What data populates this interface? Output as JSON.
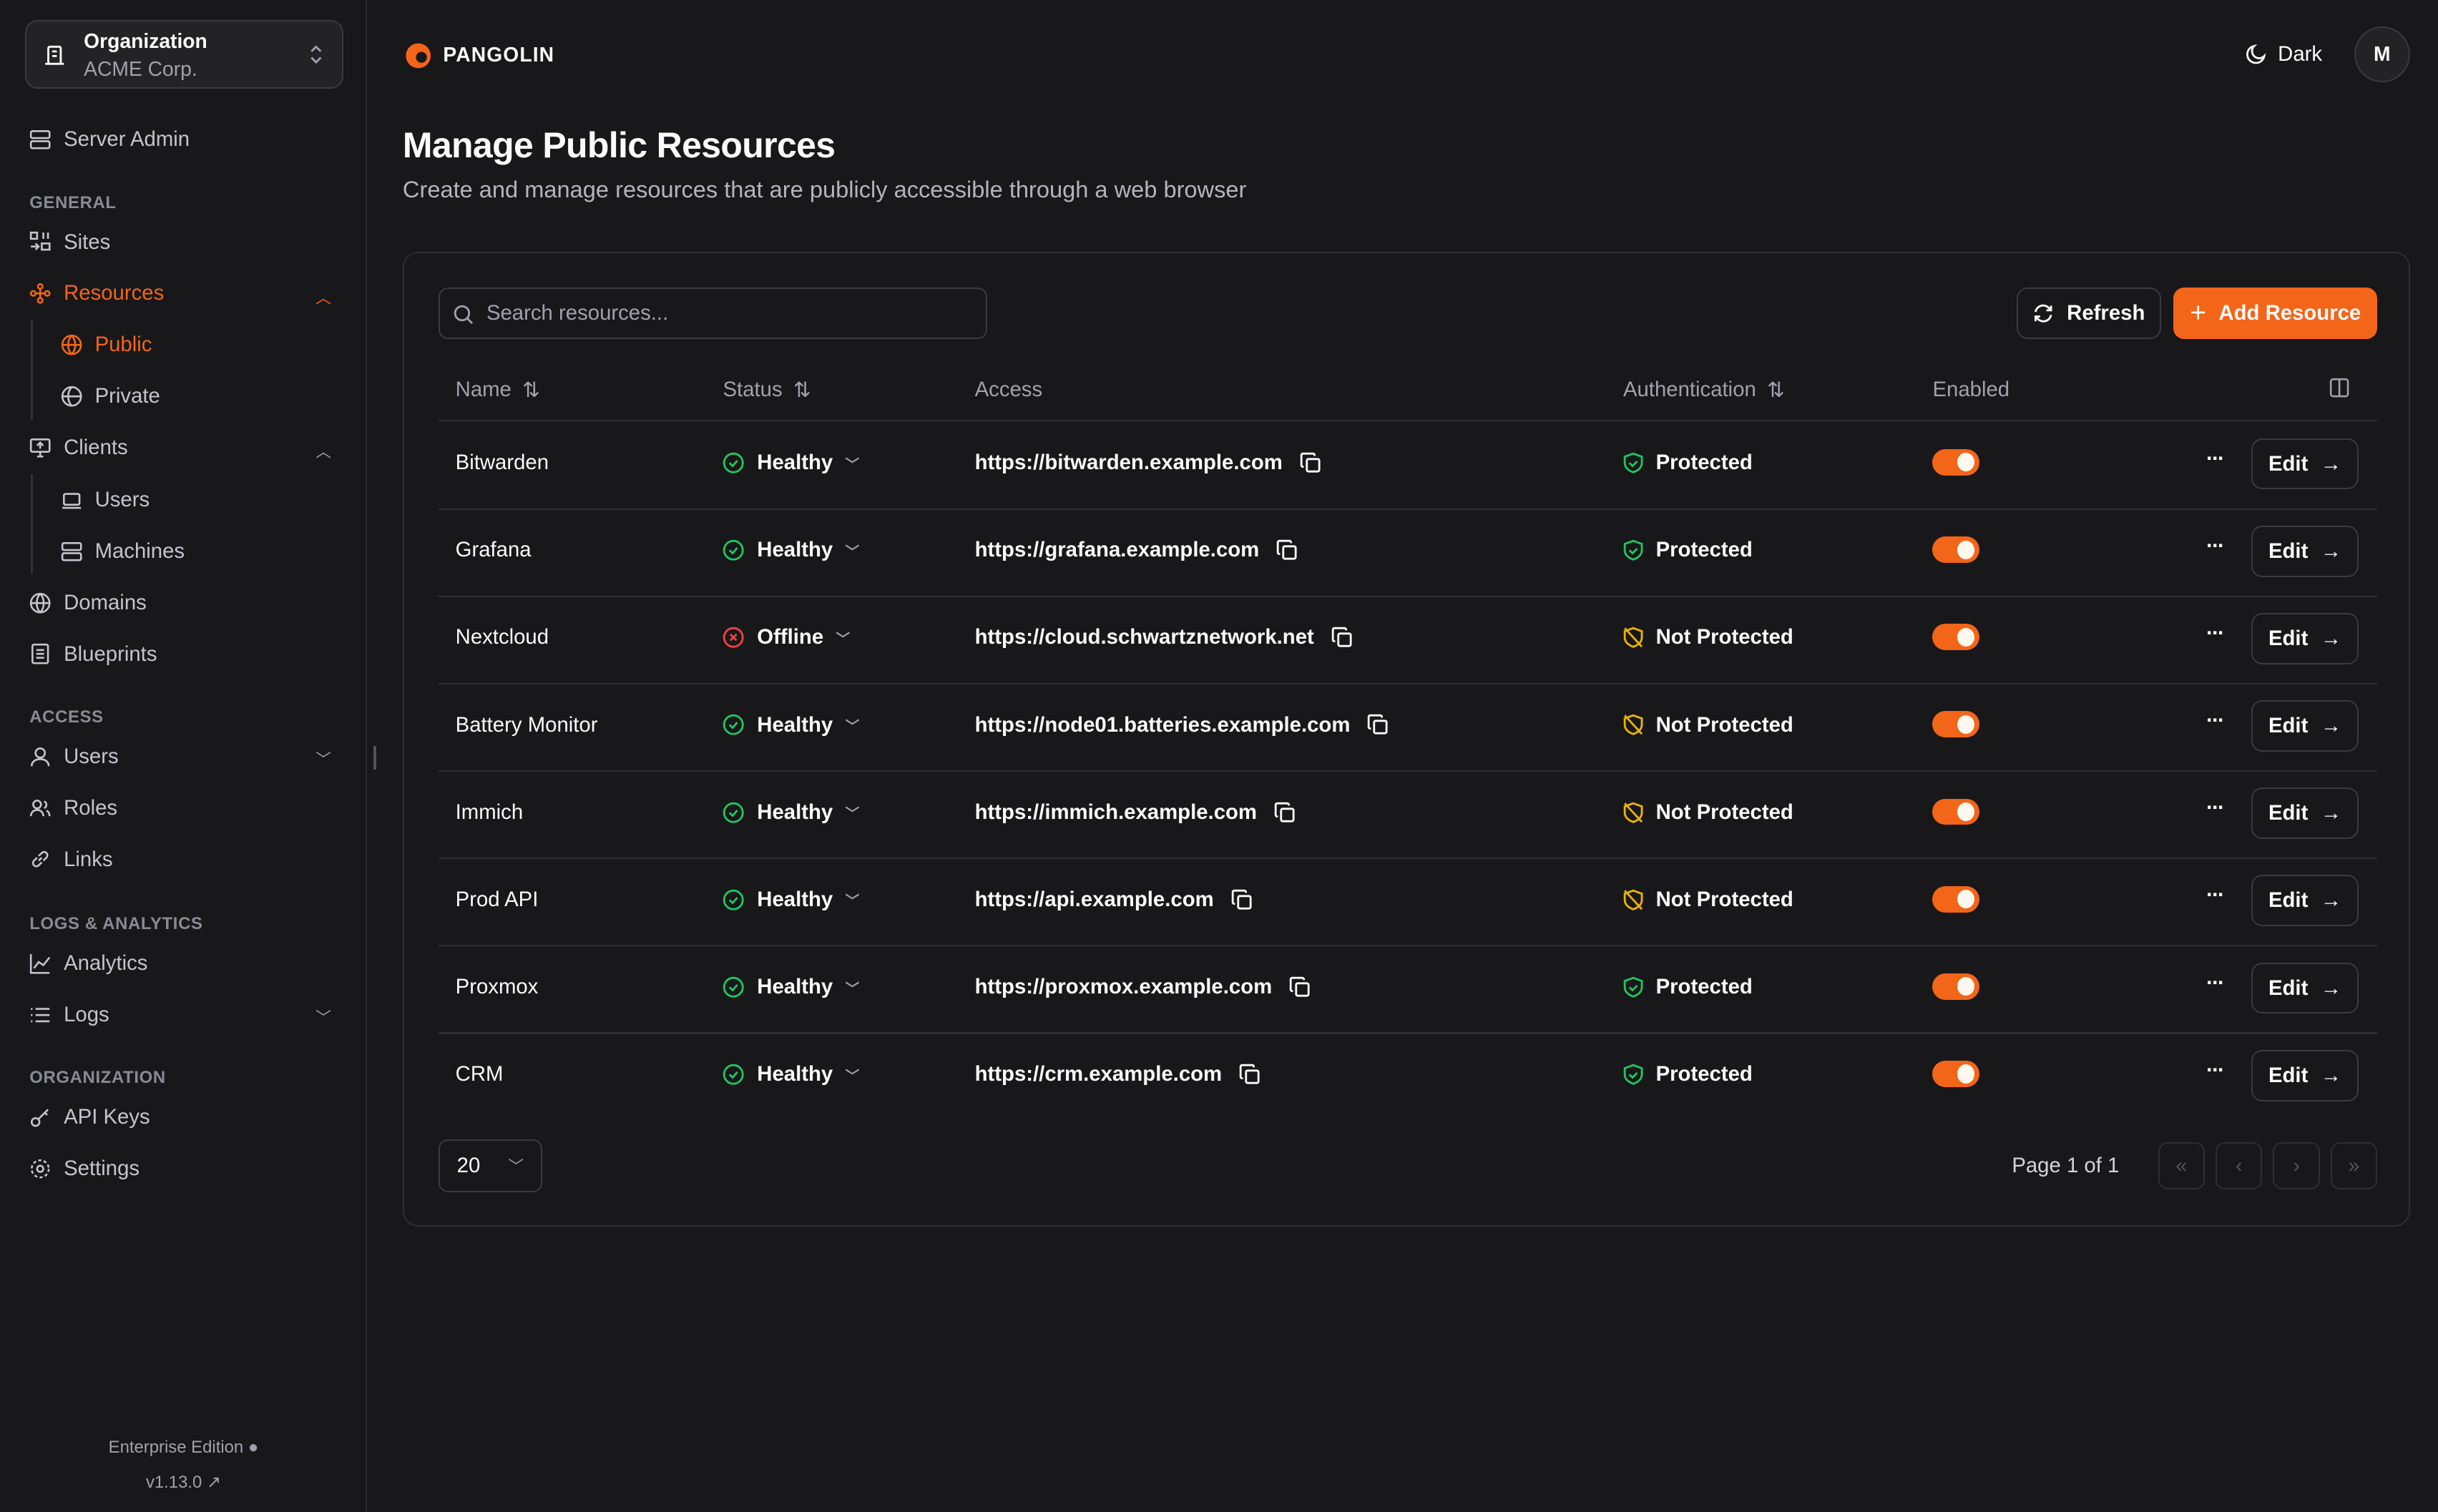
{
  "colors": {
    "accent": "#f36518",
    "healthy": "#22c55e",
    "offline": "#ef4444",
    "warning": "#eab308",
    "background": "#18181b"
  },
  "sidebar": {
    "org_label": "Organization",
    "org_name": "ACME Corp.",
    "server_admin": "Server Admin",
    "sections": {
      "general": "GENERAL",
      "access": "ACCESS",
      "logs": "LOGS & ANALYTICS",
      "organization": "ORGANIZATION"
    },
    "items": {
      "sites": "Sites",
      "resources": "Resources",
      "public": "Public",
      "private": "Private",
      "clients": "Clients",
      "users_client": "Users",
      "machines": "Machines",
      "domains": "Domains",
      "blueprints": "Blueprints",
      "users": "Users",
      "roles": "Roles",
      "links": "Links",
      "analytics": "Analytics",
      "logs": "Logs",
      "api_keys": "API Keys",
      "settings": "Settings"
    },
    "edition": "Enterprise Edition",
    "version": "v1.13.0"
  },
  "header": {
    "brand": "PANGOLIN",
    "theme": "Dark",
    "avatar": "M"
  },
  "page": {
    "title": "Manage Public Resources",
    "subtitle": "Create and manage resources that are publicly accessible through a web browser"
  },
  "toolbar": {
    "search_placeholder": "Search resources...",
    "refresh": "Refresh",
    "add": "Add Resource"
  },
  "table": {
    "columns": {
      "name": "Name",
      "status": "Status",
      "access": "Access",
      "auth": "Authentication",
      "enabled": "Enabled"
    },
    "edit_label": "Edit",
    "rows": [
      {
        "name": "Bitwarden",
        "status": "Healthy",
        "access": "https://bitwarden.example.com",
        "auth": "Protected",
        "enabled": true
      },
      {
        "name": "Grafana",
        "status": "Healthy",
        "access": "https://grafana.example.com",
        "auth": "Protected",
        "enabled": true
      },
      {
        "name": "Nextcloud",
        "status": "Offline",
        "access": "https://cloud.schwartznetwork.net",
        "auth": "Not Protected",
        "enabled": true
      },
      {
        "name": "Battery Monitor",
        "status": "Healthy",
        "access": "https://node01.batteries.example.com",
        "auth": "Not Protected",
        "enabled": true
      },
      {
        "name": "Immich",
        "status": "Healthy",
        "access": "https://immich.example.com",
        "auth": "Not Protected",
        "enabled": true
      },
      {
        "name": "Prod API",
        "status": "Healthy",
        "access": "https://api.example.com",
        "auth": "Not Protected",
        "enabled": true
      },
      {
        "name": "Proxmox",
        "status": "Healthy",
        "access": "https://proxmox.example.com",
        "auth": "Protected",
        "enabled": true
      },
      {
        "name": "CRM",
        "status": "Healthy",
        "access": "https://crm.example.com",
        "auth": "Protected",
        "enabled": true
      }
    ]
  },
  "pagination": {
    "page_size": "20",
    "info": "Page 1 of 1"
  }
}
